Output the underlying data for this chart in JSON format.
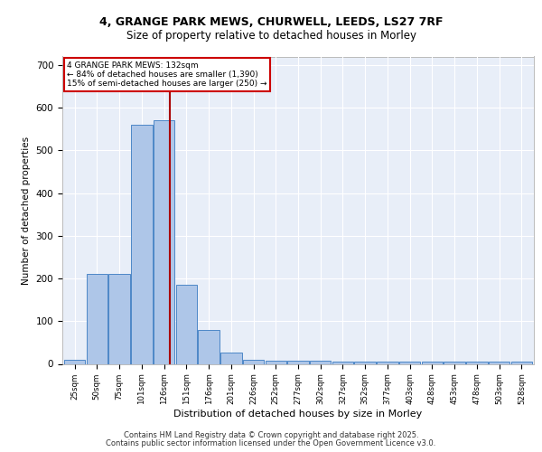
{
  "title_line1": "4, GRANGE PARK MEWS, CHURWELL, LEEDS, LS27 7RF",
  "title_line2": "Size of property relative to detached houses in Morley",
  "xlabel": "Distribution of detached houses by size in Morley",
  "ylabel": "Number of detached properties",
  "bar_labels": [
    "25sqm",
    "50sqm",
    "75sqm",
    "101sqm",
    "126sqm",
    "151sqm",
    "176sqm",
    "201sqm",
    "226sqm",
    "252sqm",
    "277sqm",
    "302sqm",
    "327sqm",
    "352sqm",
    "377sqm",
    "403sqm",
    "428sqm",
    "453sqm",
    "478sqm",
    "503sqm",
    "528sqm"
  ],
  "bar_values": [
    10,
    210,
    210,
    560,
    570,
    185,
    80,
    27,
    10,
    7,
    7,
    7,
    5,
    5,
    5,
    5,
    5,
    5,
    5,
    5,
    5
  ],
  "bar_color": "#aec6e8",
  "bar_edge_color": "#4d87c7",
  "background_color": "#e8eef8",
  "grid_color": "#ffffff",
  "red_line_x": 4.28,
  "annotation_text": "4 GRANGE PARK MEWS: 132sqm\n← 84% of detached houses are smaller (1,390)\n15% of semi-detached houses are larger (250) →",
  "annotation_box_color": "#ffffff",
  "annotation_box_edge": "#cc0000",
  "ylim": [
    0,
    720
  ],
  "yticks": [
    0,
    100,
    200,
    300,
    400,
    500,
    600,
    700
  ],
  "footer_line1": "Contains HM Land Registry data © Crown copyright and database right 2025.",
  "footer_line2": "Contains public sector information licensed under the Open Government Licence v3.0."
}
